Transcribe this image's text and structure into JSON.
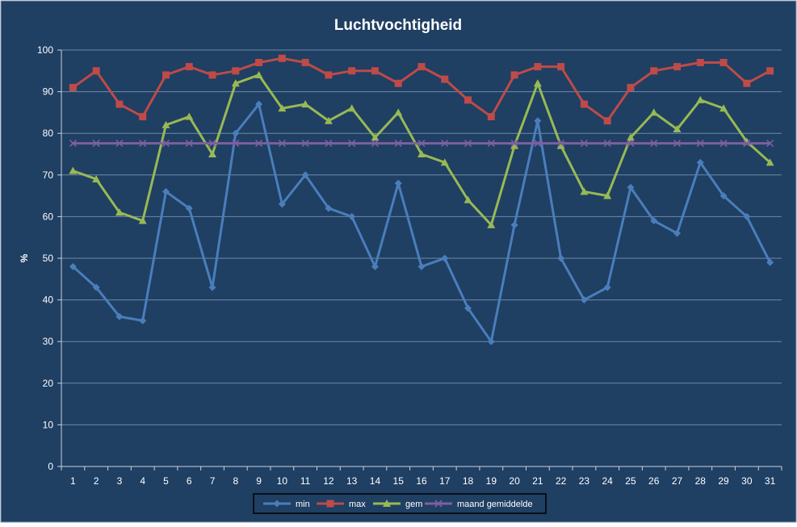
{
  "chart_data": {
    "type": "line",
    "title": "Luchtvochtigheid",
    "ylabel": "%",
    "xlabel": "",
    "ylim": [
      0,
      100
    ],
    "yticks": [
      0,
      10,
      20,
      30,
      40,
      50,
      60,
      70,
      80,
      90,
      100
    ],
    "categories": [
      "1",
      "2",
      "3",
      "4",
      "5",
      "6",
      "7",
      "8",
      "9",
      "10",
      "11",
      "12",
      "13",
      "14",
      "15",
      "16",
      "17",
      "18",
      "19",
      "20",
      "21",
      "22",
      "23",
      "24",
      "25",
      "26",
      "27",
      "28",
      "29",
      "30",
      "31"
    ],
    "legend_position": "bottom",
    "grid": "horizontal",
    "series": [
      {
        "name": "min",
        "color": "#4a7ebb",
        "marker": "diamond",
        "values": [
          48,
          43,
          36,
          35,
          66,
          62,
          43,
          80,
          87,
          63,
          70,
          62,
          60,
          48,
          68,
          48,
          50,
          38,
          30,
          58,
          83,
          50,
          40,
          43,
          67,
          59,
          56,
          73,
          65,
          60,
          49
        ]
      },
      {
        "name": "max",
        "color": "#be4b48",
        "marker": "square",
        "values": [
          91,
          95,
          87,
          84,
          94,
          96,
          94,
          95,
          97,
          98,
          97,
          94,
          95,
          95,
          92,
          96,
          93,
          88,
          84,
          94,
          96,
          96,
          87,
          83,
          91,
          95,
          96,
          97,
          97,
          92,
          95
        ]
      },
      {
        "name": "gem",
        "color": "#98b954",
        "marker": "triangle",
        "values": [
          71,
          69,
          61,
          59,
          82,
          84,
          75,
          92,
          94,
          86,
          87,
          83,
          86,
          79,
          85,
          75,
          73,
          64,
          58,
          77,
          92,
          77,
          66,
          65,
          79,
          85,
          81,
          88,
          86,
          78,
          73
        ]
      },
      {
        "name": "maand gemiddelde",
        "color": "#7d60a0",
        "marker": "x",
        "values": [
          77.6,
          77.6,
          77.6,
          77.6,
          77.6,
          77.6,
          77.6,
          77.6,
          77.6,
          77.6,
          77.6,
          77.6,
          77.6,
          77.6,
          77.6,
          77.6,
          77.6,
          77.6,
          77.6,
          77.6,
          77.6,
          77.6,
          77.6,
          77.6,
          77.6,
          77.6,
          77.6,
          77.6,
          77.6,
          77.6,
          77.6
        ]
      }
    ],
    "colors": {
      "background": "#1f3f63",
      "grid": "#6f8aa8",
      "text": "#ffffff",
      "border": "#000000"
    }
  }
}
